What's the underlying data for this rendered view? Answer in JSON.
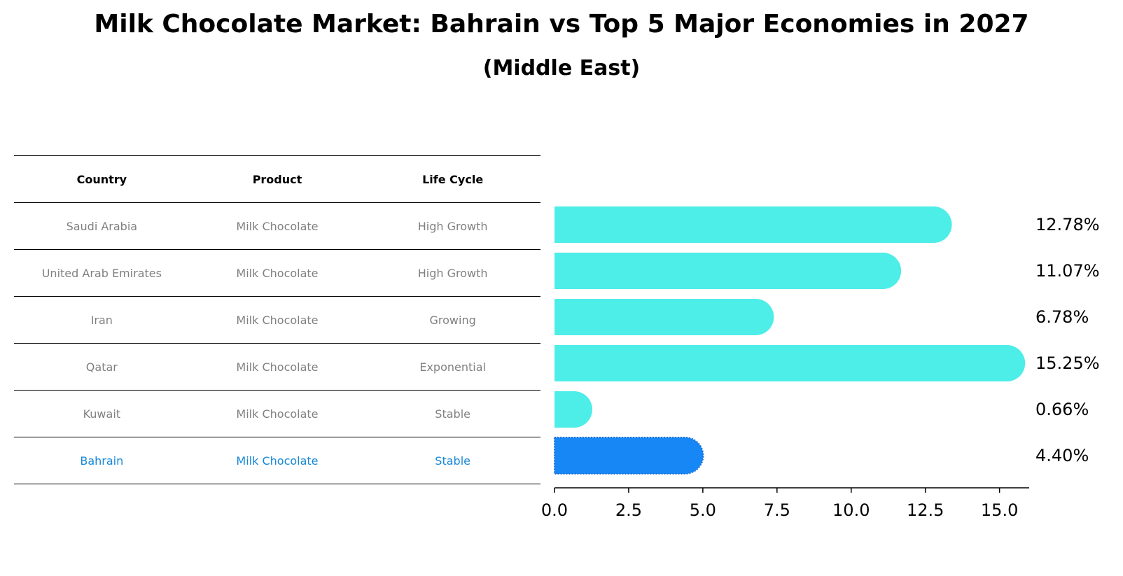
{
  "title": "Milk Chocolate Market: Bahrain vs Top 5 Major Economies in 2027",
  "subtitle": "(Middle East)",
  "table": {
    "headers": [
      "Country",
      "Product",
      "Life Cycle"
    ],
    "rows": [
      [
        "Saudi Arabia",
        "Milk Chocolate",
        "High Growth"
      ],
      [
        "United Arab Emirates",
        "Milk Chocolate",
        "High Growth"
      ],
      [
        "Iran",
        "Milk Chocolate",
        "Growing"
      ],
      [
        "Qatar",
        "Milk Chocolate",
        "Exponential"
      ],
      [
        "Kuwait",
        "Milk Chocolate",
        "Stable"
      ],
      [
        "Bahrain",
        "Milk Chocolate",
        "Stable"
      ]
    ],
    "highlight_row": 5
  },
  "colors": {
    "bar": "#4dede8",
    "highlight": "#1787f5",
    "highlight_text": "#1787d6"
  },
  "chart_data": {
    "type": "bar",
    "orientation": "horizontal",
    "categories": [
      "Saudi Arabia",
      "United Arab Emirates",
      "Iran",
      "Qatar",
      "Kuwait",
      "Bahrain"
    ],
    "values": [
      12.78,
      11.07,
      6.78,
      15.25,
      0.66,
      4.4
    ],
    "value_labels": [
      "12.78%",
      "11.07%",
      "6.78%",
      "15.25%",
      "0.66%",
      "4.40%"
    ],
    "highlight": "Bahrain",
    "xlim": [
      0,
      16
    ],
    "xticks": [
      "0.0",
      "2.5",
      "5.0",
      "7.5",
      "10.0",
      "12.5",
      "15.0"
    ],
    "xtick_values": [
      0,
      2.5,
      5,
      7.5,
      10,
      12.5,
      15
    ],
    "xlabel": "",
    "ylabel": "",
    "grid": false
  }
}
